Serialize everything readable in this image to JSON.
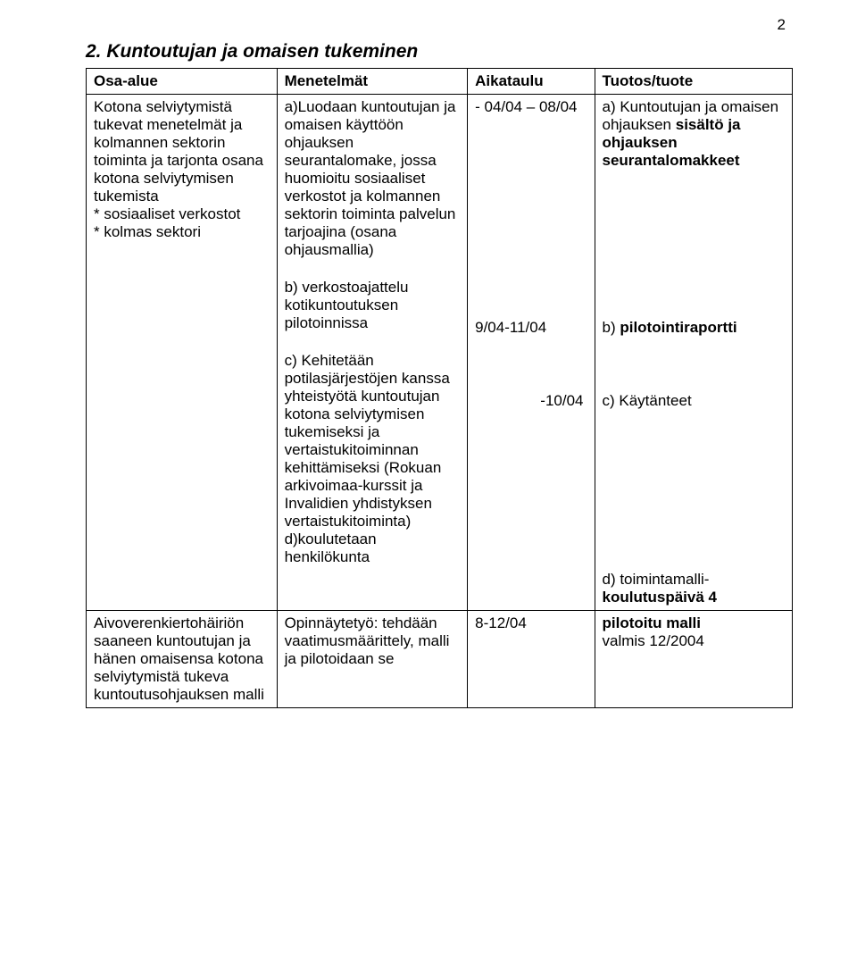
{
  "page_number": "2",
  "section_title": "2. Kuntoutujan ja omaisen tukeminen",
  "table": {
    "headers": [
      "Osa-alue",
      "Menetelmät",
      "Aikataulu",
      "Tuotos/tuote"
    ],
    "col_widths_pct": [
      27,
      27,
      18,
      28
    ],
    "rows": [
      {
        "osa_alue": "Kotona selviytymistä tukevat menetelmät ja kolmannen sektorin toiminta ja tarjonta osana kotona selviytymisen tukemista\n* sosiaaliset verkostot\n* kolmas sektori",
        "menetelmat": [
          "a)Luodaan kuntoutujan ja omaisen käyttöön ohjauksen seurantalomake, jossa huomioitu sosiaaliset verkostot ja kolmannen sektorin toiminta palvelun tarjoajina (osana ohjausmallia)",
          "b) verkostoajattelu kotikuntoutuksen pilotoinnissa",
          "c) Kehitetään potilasjärjestöjen kanssa yhteistyötä kuntoutujan kotona selviytymisen tukemiseksi ja vertaistukitoiminnan kehittämiseksi (Rokuan arkivoimaa-kurssit ja Invalidien yhdistyksen vertaistukitoiminta)\nd)koulutetaan henkilökunta"
        ],
        "aikataulu": [
          "- 04/04 – 08/04",
          "9/04-11/04",
          "-10/04"
        ],
        "aikataulu_align": [
          "left",
          "left",
          "right"
        ],
        "tuotos": [
          {
            "text": "a) Kuntoutujan ja omaisen ohjauksen ",
            "bold_after": "sisältö ja ohjauksen seurantalomakkeet"
          },
          {
            "plain": "b) ",
            "bold": "pilotointiraportti"
          },
          {
            "text": "c) Käytänteet\n\n\n\n\n\n\n\n\n\nd) toimintamalli-\n",
            "bold_after": "koulutuspäivä 4"
          }
        ]
      },
      {
        "osa_alue": "Aivoverenkiertohäiriön saaneen kuntoutujan ja hänen omaisensa kotona selviytymistä tukeva kuntoutusohjauksen malli",
        "menetelmat_plain": "Opinnäytetyö: tehdään vaatimusmäärittely, malli ja pilotoidaan se",
        "aikataulu_plain": "8-12/04",
        "tuotos_plain_bold": "pilotoitu malli",
        "tuotos_plain_rest": "valmis 12/2004"
      }
    ]
  },
  "colors": {
    "text": "#000000",
    "background": "#ffffff",
    "border": "#000000"
  },
  "font": {
    "family": "Arial, Helvetica, sans-serif",
    "body_size_pt": 17,
    "title_size_pt": 21
  }
}
